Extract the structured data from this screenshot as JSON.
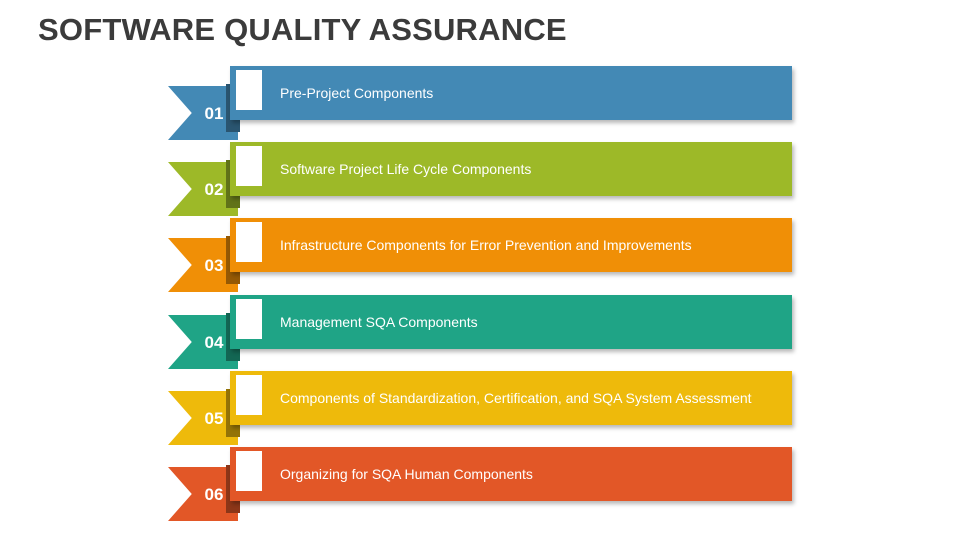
{
  "title": "SOFTWARE QUALITY ASSURANCE",
  "items": [
    {
      "number": "01",
      "label": "Pre-Project Components",
      "color": "#4389b5"
    },
    {
      "number": "02",
      "label": "Software Project Life Cycle Components",
      "color": "#9db928"
    },
    {
      "number": "03",
      "label": "Infrastructure Components for Error Prevention and Improvements",
      "color": "#f08f06"
    },
    {
      "number": "04",
      "label": "Management SQA Components",
      "color": "#1fa486"
    },
    {
      "number": "05",
      "label": "Components of Standardization, Certification, and SQA System Assessment",
      "color": "#eeba0b"
    },
    {
      "number": "06",
      "label": "Organizing for SQA Human Components",
      "color": "#e25727"
    }
  ]
}
